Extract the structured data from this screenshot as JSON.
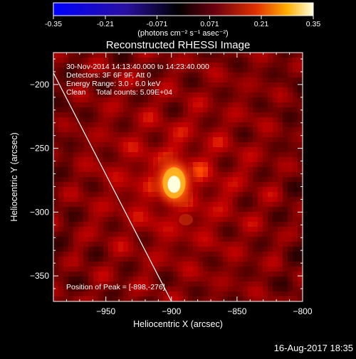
{
  "chart_data": {
    "type": "heatmap",
    "title": "Reconstructed RHESSI Image",
    "xlabel": "Heliocentric X (arcsec)",
    "ylabel": "Heliocentric Y (arcsec)",
    "xlim": [
      -990,
      -800
    ],
    "ylim": [
      -370,
      -175
    ],
    "x_ticks": [
      -950,
      -900,
      -850,
      -800
    ],
    "y_ticks": [
      -200,
      -250,
      -300,
      -350
    ],
    "colorbar": {
      "range": [
        -0.35,
        0.35
      ],
      "ticks": [
        "-0.35",
        "-0.21",
        "-0.071",
        "0.071",
        "0.21",
        "0.35"
      ],
      "unit_label": "(photons cm⁻² s⁻¹ asec⁻²)"
    },
    "annotations": [
      "30-Nov-2014 14:13:40.000 to 14:23:40.000",
      "Detectors: 3F 6F 9F, Att 0",
      "Energy Range: 3.0 - 6.0 keV",
      "Clean     Total counts: 5.09E+04"
    ],
    "peak_label": "Position of Peak = [-898,-276]",
    "peak": {
      "x": -898,
      "y": -276,
      "value": 0.35
    },
    "limb": [
      [
        -998,
        -175
      ],
      [
        -950,
        -270
      ],
      [
        -900,
        -370
      ]
    ],
    "grid": false
  },
  "footer": {
    "date": "16-Aug-2017 18:35"
  },
  "colors": {
    "background": "#000000",
    "axes": "#ffffff",
    "colormap": "rhessi-bluered-hot"
  }
}
